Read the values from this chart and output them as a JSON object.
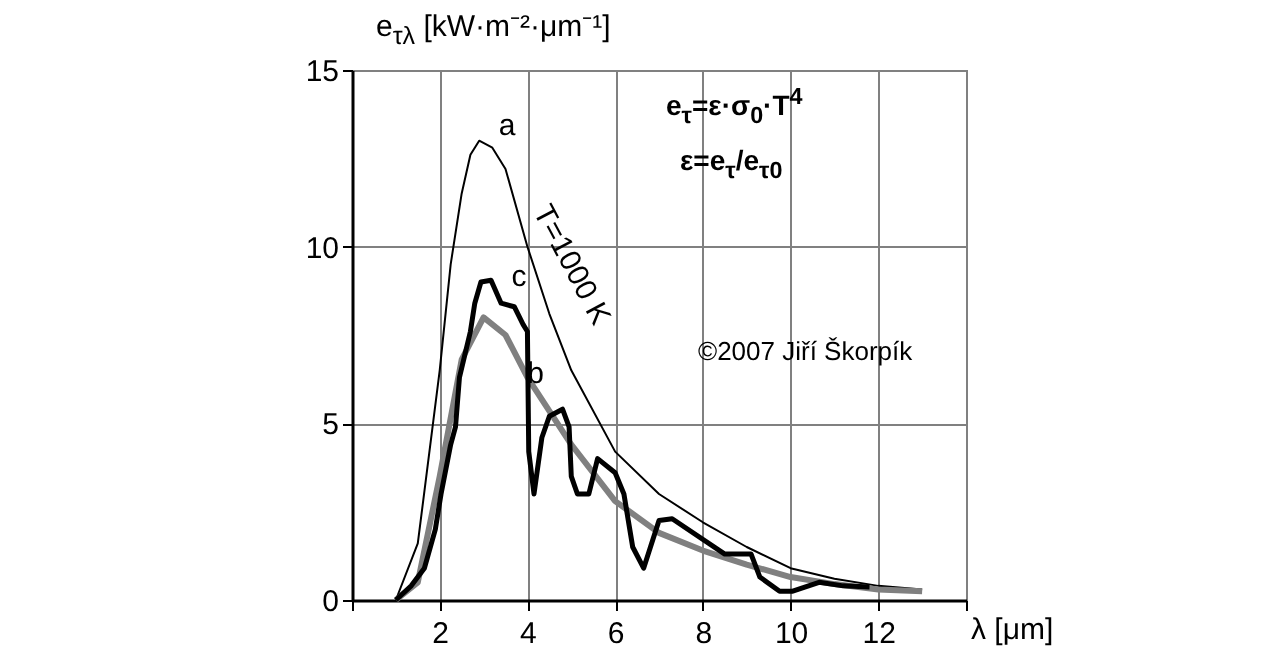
{
  "chart_data": {
    "type": "line",
    "ylabel": "e$_{τλ}$ [kW·m⁻²·μm⁻¹]",
    "xlabel": "λ [μm]",
    "xlim": [
      0,
      14
    ],
    "ylim": [
      0,
      15
    ],
    "xticks": [
      {
        "value": 0,
        "label": null
      },
      2,
      4,
      6,
      8,
      10,
      12,
      {
        "value": 14,
        "label": null
      }
    ],
    "yticks": [
      0,
      5,
      10,
      15
    ],
    "grid": true,
    "line_style": "solid",
    "series": [
      {
        "name": "a",
        "color": "#000000",
        "x": [
          1,
          1.5,
          2,
          2.25,
          2.5,
          2.7,
          2.9,
          3.2,
          3.5,
          4,
          4.5,
          5,
          6,
          7,
          8,
          9,
          10,
          11,
          12,
          13
        ],
        "values": [
          0,
          1.6,
          6.5,
          9.5,
          11.5,
          12.6,
          13,
          12.8,
          12.2,
          10,
          8.1,
          6.5,
          4.2,
          3,
          2.2,
          1.5,
          0.9,
          0.6,
          0.4,
          0.3
        ]
      },
      {
        "name": "b",
        "color": "#808080",
        "x": [
          1,
          1.5,
          2,
          2.5,
          3,
          3.5,
          4,
          5,
          6,
          7,
          8,
          9,
          10,
          11,
          12,
          13
        ],
        "values": [
          0,
          0.5,
          3.5,
          6.8,
          8,
          7.5,
          6.3,
          4.4,
          2.8,
          1.9,
          1.4,
          1,
          0.65,
          0.45,
          0.3,
          0.25
        ]
      },
      {
        "name": "c",
        "color": "#000000",
        "x": [
          1,
          1.35,
          1.65,
          1.9,
          2.03,
          2.25,
          2.36,
          2.45,
          2.7,
          2.8,
          2.94,
          3.17,
          3.4,
          3.7,
          3.9,
          4,
          4.03,
          4.15,
          4.33,
          4.5,
          4.8,
          4.95,
          5,
          5.14,
          5.4,
          5.6,
          6,
          6.2,
          6.4,
          6.65,
          7,
          7.3,
          8.5,
          9.1,
          9.3,
          9.75,
          10.05,
          10.65,
          11.2,
          11.8
        ],
        "values": [
          0,
          0.4,
          0.9,
          2,
          3,
          4.4,
          4.9,
          6.3,
          7.6,
          8.4,
          9,
          9.05,
          8.4,
          8.3,
          7.8,
          7.6,
          4.2,
          3,
          4.6,
          5.2,
          5.4,
          4.9,
          3.5,
          3,
          3,
          4,
          3.6,
          3,
          1.5,
          0.9,
          2.25,
          2.3,
          1.3,
          1.3,
          0.65,
          0.25,
          0.25,
          0.5,
          0.4,
          0.37
        ]
      }
    ],
    "annotations": [
      "T=1000 K",
      "e$_{τ}$=ε·σ$_{0}$·T$^{4}$",
      "ε=e$_{τ}$/e$_{τ0}$",
      "©2007 Jiří Škorpík"
    ]
  }
}
